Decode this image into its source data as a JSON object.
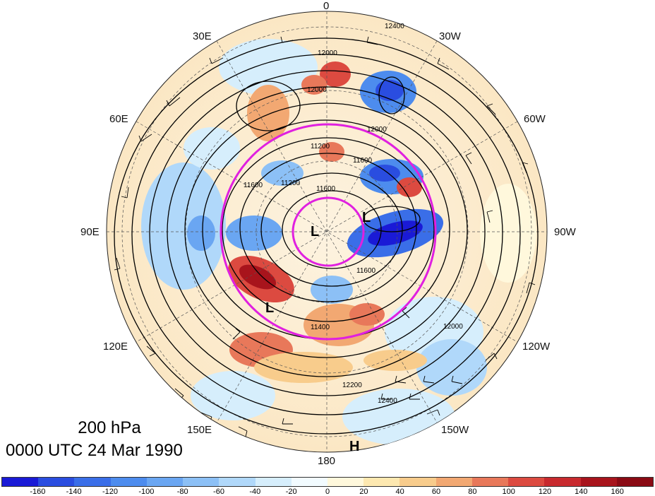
{
  "map": {
    "projection": "north-polar-stereographic",
    "level_title": "200 hPa",
    "time_title": "0000 UTC 24 Mar 1990",
    "fields": [
      "geopotential height contours",
      "wind barbs",
      "shaded anomaly",
      "magenta circles"
    ],
    "longitude_labels": {
      "top": "0",
      "top_left": "30E",
      "top_right": "30W",
      "upper_left": "60E",
      "upper_right": "60W",
      "left": "90E",
      "right": "90W",
      "lower_left": "120E",
      "lower_right": "120W",
      "bottom_left": "150E",
      "bottom_right": "150W",
      "bottom": "180"
    },
    "contour_labels": [
      "12400",
      "12000",
      "12000",
      "12000",
      "11600",
      "11200",
      "11600",
      "11200",
      "11600",
      "11400",
      "12000",
      "12200",
      "12400",
      "11600"
    ],
    "pressure_centers": [
      {
        "symbol": "L"
      },
      {
        "symbol": "L"
      },
      {
        "symbol": "L"
      },
      {
        "symbol": "H"
      }
    ]
  },
  "colorbar": {
    "tick_labels": [
      "-160",
      "-140",
      "-120",
      "-100",
      "-80",
      "-60",
      "-40",
      "-20",
      "0",
      "20",
      "40",
      "60",
      "80",
      "100",
      "120",
      "140",
      "160"
    ],
    "colors": [
      "#1a1ad6",
      "#2a4de0",
      "#3a6ee8",
      "#4d8cee",
      "#6aa6f2",
      "#8cc0f6",
      "#b0d8fa",
      "#d6eefc",
      "#f2fbff",
      "#fff8dc",
      "#fde8b0",
      "#f8cc8c",
      "#f2a872",
      "#e8785a",
      "#dc4a40",
      "#c82a2e",
      "#a8141c",
      "#8a0a14"
    ]
  }
}
